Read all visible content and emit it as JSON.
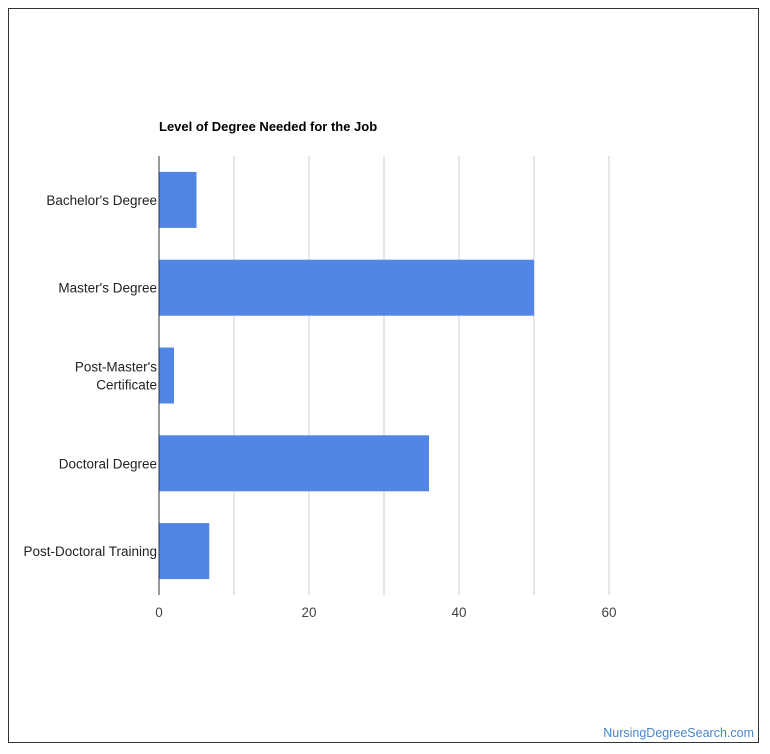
{
  "credit": "NursingDegreeSearch.com",
  "colors": {
    "bar": "#5186e4",
    "grid": "#cccccc",
    "axis": "#333333"
  },
  "chart_data": {
    "type": "bar",
    "orientation": "horizontal",
    "title": "Level of Degree Needed for the Job",
    "xlabel": "",
    "ylabel": "",
    "categories": [
      [
        "Bachelor's Degree"
      ],
      [
        "Master's Degree"
      ],
      [
        "Post-Master's",
        "Certificate"
      ],
      [
        "Doctoral Degree"
      ],
      [
        "Post-Doctoral Training"
      ]
    ],
    "values": [
      5,
      50,
      2,
      36,
      6.7
    ],
    "xlim": [
      0,
      60
    ],
    "xticks": [
      0,
      20,
      40,
      60
    ],
    "grid": true,
    "legend": "none"
  }
}
